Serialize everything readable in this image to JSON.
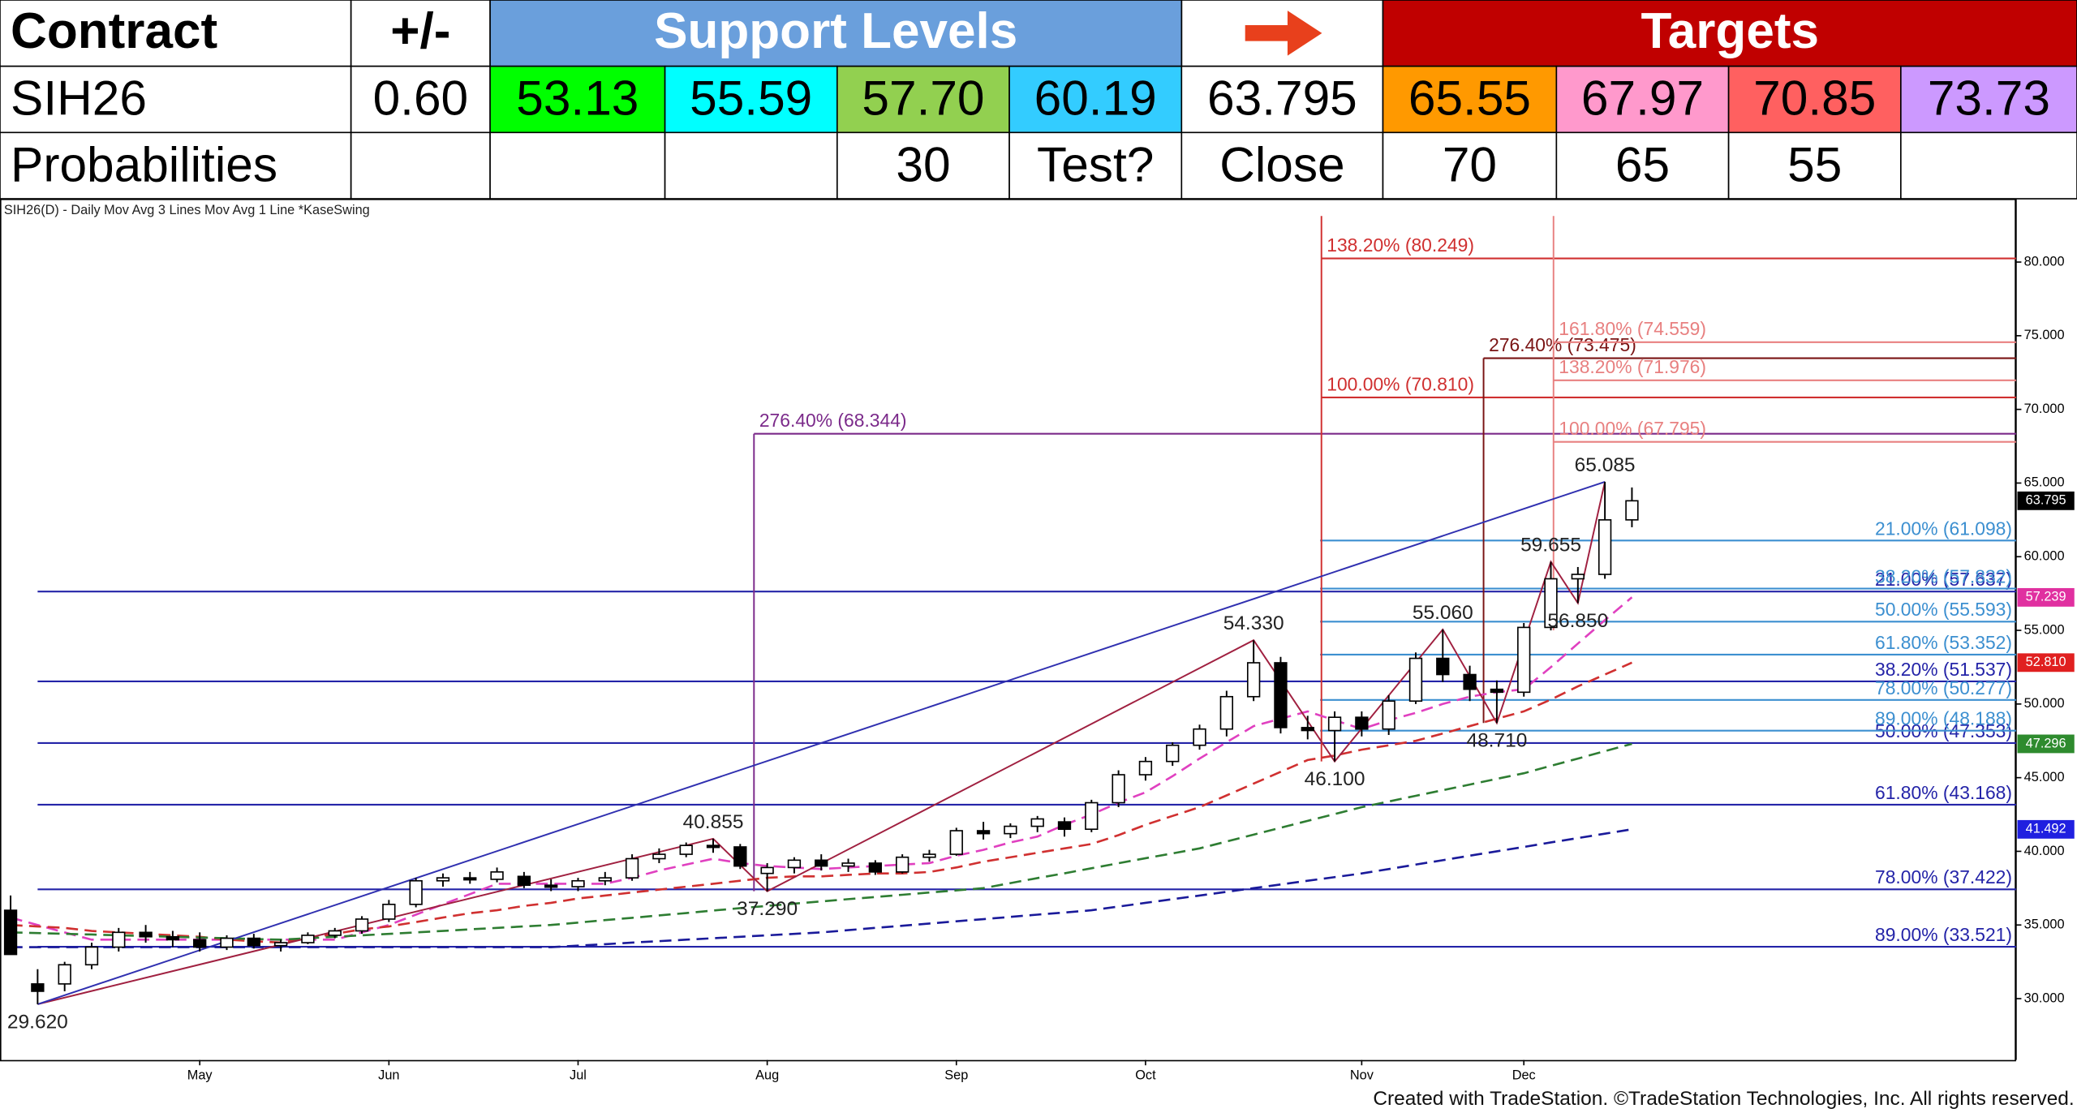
{
  "table": {
    "header": [
      "Contract",
      "+/-",
      "Support Levels",
      "Targets"
    ],
    "rows": [
      [
        "SIH26",
        "0.60",
        "53.13",
        "55.59",
        "57.70",
        "60.19",
        "63.795",
        "65.55",
        "67.97",
        "70.85",
        "73.73"
      ],
      [
        "Probabilities",
        null,
        null,
        null,
        "30",
        "Test?",
        "Close",
        "70",
        "65",
        "55",
        null
      ]
    ]
  },
  "footer": "Created with TradeStation. ©TradeStation Technologies, Inc. All rights reserved.",
  "chart_data": {
    "type": "candlestick",
    "title": "SIH26(D) - Daily  Mov Avg 3 Lines  Mov Avg 1 Line  *KaseSwing",
    "categories": [
      null,
      null,
      null,
      null,
      null,
      null,
      null,
      "May",
      null,
      null,
      null,
      null,
      null,
      null,
      "Jun",
      null,
      null,
      null,
      null,
      null,
      null,
      "Jul",
      null,
      null,
      null,
      null,
      null,
      null,
      "Aug",
      null,
      null,
      null,
      null,
      null,
      null,
      "Sep",
      null,
      null,
      null,
      null,
      null,
      null,
      "Oct",
      null,
      null,
      null,
      null,
      null,
      null,
      null,
      "Nov",
      null,
      null,
      null,
      null,
      null,
      "Dec",
      null,
      null,
      null,
      null
    ],
    "open": [
      36,
      31,
      31,
      32.3,
      33.5,
      34.5,
      34.2,
      34,
      33.5,
      34.1,
      33.6,
      33.8,
      34.3,
      34.6,
      35.4,
      36.4,
      38,
      38.2,
      38.1,
      38.3,
      37.7,
      37.6,
      38,
      38.2,
      39.5,
      39.8,
      40.4,
      40.3,
      38.5,
      38.9,
      39.4,
      39,
      39.2,
      38.6,
      39.6,
      39.8,
      41.4,
      41.2,
      41.7,
      42,
      41.5,
      43.3,
      45.2,
      46.1,
      47.2,
      48.3,
      50.5,
      52.8,
      48.4,
      48.2,
      49.1,
      48.3,
      50.2,
      53.1,
      52,
      51,
      50.8,
      55.2,
      58.5,
      58.8,
      62.5
    ],
    "high": [
      37,
      32,
      32.5,
      33.8,
      34.8,
      35,
      34.6,
      34.5,
      34.3,
      34.4,
      34,
      34.5,
      34.8,
      35.6,
      36.7,
      38.2,
      38.5,
      38.6,
      38.9,
      38.6,
      38.1,
      38.2,
      38.6,
      39.8,
      40.2,
      40.6,
      40.855,
      40.5,
      39.2,
      39.6,
      39.8,
      39.5,
      39.4,
      39.8,
      40.1,
      41.6,
      42,
      41.9,
      42.4,
      42.3,
      43.5,
      45.5,
      46.4,
      47.4,
      48.6,
      50.9,
      54.33,
      53.2,
      49.2,
      49.5,
      49.5,
      50.6,
      53.5,
      55.06,
      52.6,
      51.6,
      55.5,
      59.655,
      59.3,
      65.085,
      64.7
    ],
    "low": [
      33,
      29.62,
      30.5,
      32,
      33.2,
      33.8,
      33.5,
      33.2,
      33.3,
      33.4,
      33.2,
      33.7,
      34.1,
      34.4,
      35.2,
      36.2,
      37.6,
      37.8,
      37.9,
      37.5,
      37.3,
      37.3,
      37.7,
      38,
      39.2,
      39.6,
      39.9,
      38.8,
      37.29,
      38.5,
      38.7,
      38.6,
      38.4,
      38.5,
      39.3,
      39.7,
      40.8,
      40.9,
      41.3,
      41,
      41.3,
      43,
      44.8,
      45.8,
      46.9,
      47.8,
      50.2,
      48,
      47.6,
      46.1,
      47.8,
      47.9,
      50,
      51.5,
      50.2,
      48.71,
      50.5,
      55,
      56.85,
      58.5,
      62
    ],
    "close": [
      33,
      30.5,
      32.3,
      33.5,
      34.5,
      34.2,
      34,
      33.5,
      34.1,
      33.6,
      33.8,
      34.3,
      34.6,
      35.4,
      36.4,
      38,
      38.2,
      38.1,
      38.6,
      37.7,
      37.6,
      38,
      38.2,
      39.5,
      39.8,
      40.4,
      40.3,
      39,
      38.9,
      39.4,
      39,
      39.2,
      38.6,
      39.6,
      39.8,
      41.4,
      41.2,
      41.7,
      42.2,
      41.5,
      43.3,
      45.2,
      46.1,
      47.2,
      48.3,
      50.5,
      52.8,
      48.4,
      48.2,
      49.1,
      48.3,
      50.2,
      53.1,
      52,
      51,
      50.8,
      55.2,
      58.5,
      58.8,
      62.5,
      63.795
    ],
    "high_labels": [
      null,
      null,
      null,
      null,
      null,
      null,
      null,
      null,
      null,
      null,
      null,
      null,
      null,
      null,
      null,
      null,
      null,
      null,
      null,
      null,
      null,
      null,
      null,
      null,
      null,
      null,
      "40.855",
      null,
      null,
      null,
      null,
      null,
      null,
      null,
      null,
      null,
      null,
      null,
      null,
      null,
      null,
      null,
      null,
      null,
      null,
      null,
      "54.330",
      null,
      null,
      null,
      null,
      null,
      null,
      "55.060",
      null,
      null,
      null,
      "59.655",
      null,
      "65.085",
      null
    ],
    "low_labels": [
      null,
      "29.620",
      null,
      null,
      null,
      null,
      null,
      null,
      null,
      null,
      null,
      null,
      null,
      null,
      null,
      null,
      null,
      null,
      null,
      null,
      null,
      null,
      null,
      null,
      null,
      null,
      null,
      null,
      "37.290",
      null,
      null,
      null,
      null,
      null,
      null,
      null,
      null,
      null,
      null,
      null,
      null,
      null,
      null,
      null,
      null,
      null,
      null,
      null,
      null,
      "46.100",
      null,
      null,
      null,
      null,
      null,
      "48.710",
      null,
      null,
      "56.850",
      null,
      null
    ],
    "moving_averages": [
      {
        "color": "#e040c0",
        "values": [
          35.5,
          35,
          34.5,
          34,
          34,
          34,
          34,
          34,
          34,
          34,
          34,
          34,
          34,
          34.5,
          35,
          35.7,
          36.4,
          37.1,
          37.8,
          37.8,
          37.8,
          37.8,
          37.8,
          38.2,
          38.7,
          39.1,
          39.5,
          39.2,
          39,
          38.9,
          38.8,
          38.9,
          39,
          39.1,
          39.2,
          39.7,
          40.1,
          40.6,
          41,
          41.8,
          42.5,
          43.3,
          44,
          45.1,
          46.3,
          47.4,
          48.5,
          49,
          49.5,
          48.9,
          48.3,
          48.9,
          49.4,
          50,
          50.5,
          50.8,
          51,
          52.5,
          54.1,
          55.7,
          57.239
        ]
      },
      {
        "color": "#d03030",
        "values": [
          35,
          34.9,
          34.8,
          34.6,
          34.5,
          34.4,
          34.3,
          34.2,
          34,
          33.9,
          33.8,
          34.1,
          34.4,
          34.7,
          34.9,
          35.2,
          35.5,
          35.8,
          36,
          36.3,
          36.5,
          36.8,
          37,
          37.2,
          37.4,
          37.6,
          37.8,
          38,
          38.2,
          38.3,
          38.3,
          38.4,
          38.5,
          38.5,
          38.6,
          38.9,
          39.3,
          39.6,
          39.9,
          40.2,
          40.5,
          41.1,
          41.8,
          42.4,
          43,
          43.8,
          44.6,
          45.4,
          46.2,
          46.5,
          46.9,
          47.2,
          47.5,
          48,
          48.5,
          49,
          49.5,
          50.3,
          51.2,
          52,
          52.81
        ]
      },
      {
        "color": "#2e7d32",
        "values": [
          34.5,
          34.45,
          34.4,
          34.35,
          34.3,
          34.25,
          34.2,
          34.15,
          34.1,
          34.05,
          34,
          34.1,
          34.2,
          34.3,
          34.4,
          34.5,
          34.6,
          34.7,
          34.8,
          34.9,
          35,
          35.16,
          35.33,
          35.49,
          35.65,
          35.81,
          35.98,
          36.14,
          36.3,
          36.45,
          36.6,
          36.75,
          36.9,
          37.05,
          37.2,
          37.35,
          37.5,
          37.84,
          38.18,
          38.51,
          38.85,
          39.19,
          39.53,
          39.86,
          40.2,
          40.67,
          41.13,
          41.6,
          42.07,
          42.53,
          43,
          43.38,
          43.77,
          44.15,
          44.53,
          44.92,
          45.3,
          45.8,
          46.3,
          46.8,
          47.296
        ]
      },
      {
        "color": "#1a1a9a",
        "values": [
          33.5,
          33.5,
          33.5,
          33.5,
          33.5,
          33.5,
          33.5,
          33.5,
          33.5,
          33.5,
          33.5,
          33.5,
          33.5,
          33.5,
          33.5,
          33.5,
          33.5,
          33.5,
          33.5,
          33.5,
          33.5,
          33.6,
          33.7,
          33.8,
          33.9,
          34,
          34.1,
          34.2,
          34.3,
          34.4,
          34.5,
          34.65,
          34.8,
          34.95,
          35.1,
          35.25,
          35.4,
          35.55,
          35.7,
          35.85,
          36,
          36.25,
          36.5,
          36.75,
          37,
          37.25,
          37.5,
          37.75,
          38,
          38.25,
          38.5,
          38.8,
          39.1,
          39.4,
          39.7,
          40,
          40.3,
          40.6,
          40.9,
          41.2,
          41.492
        ]
      }
    ],
    "retracements": [
      {
        "color": "#2424a8",
        "levels": [
          {
            "label": "21.00% (57.637)",
            "value": 57.637
          },
          {
            "label": "38.20% (51.537)",
            "value": 51.537
          },
          {
            "label": "50.00% (47.353)",
            "value": 47.353
          },
          {
            "label": "61.80% (43.168)",
            "value": 43.168
          },
          {
            "label": "78.00% (37.422)",
            "value": 37.422
          },
          {
            "label": "89.00% (33.521)",
            "value": 33.521
          }
        ]
      },
      {
        "color": "#3c8fd0",
        "levels": [
          {
            "label": "21.00% (61.098)",
            "value": 61.098
          },
          {
            "label": "38.20% (57.832)",
            "value": 57.832
          },
          {
            "label": "50.00% (55.593)",
            "value": 55.593
          },
          {
            "label": "61.80% (53.352)",
            "value": 53.352
          },
          {
            "label": "78.00% (50.277)",
            "value": 50.277
          },
          {
            "label": "89.00% (48.188)",
            "value": 48.188
          }
        ]
      }
    ],
    "extensions": [
      {
        "color": "#7b2a8a",
        "levels": [
          {
            "label": "276.40% (68.344)",
            "value": 68.344
          }
        ]
      },
      {
        "color": "#d03030",
        "levels": [
          {
            "label": "138.20% (80.249)",
            "value": 80.249
          },
          {
            "label": "100.00% (70.810)",
            "value": 70.81
          }
        ]
      },
      {
        "color": "#7a1414",
        "levels": [
          {
            "label": "276.40% (73.475)",
            "value": 73.475
          }
        ]
      },
      {
        "color": "#e88080",
        "levels": [
          {
            "label": "161.80% (74.559)",
            "value": 74.559
          },
          {
            "label": "138.20% (71.976)",
            "value": 71.976
          },
          {
            "label": "100.00% (67.795)",
            "value": 67.795
          }
        ]
      }
    ],
    "price_markers": [
      {
        "value": 63.795,
        "label": "63.795",
        "color": "#000000"
      },
      {
        "value": 57.239,
        "label": "57.239",
        "color": "#e030a0"
      },
      {
        "value": 52.81,
        "label": "52.810",
        "color": "#e02020"
      },
      {
        "value": 47.296,
        "label": "47.296",
        "color": "#2e8b2e"
      },
      {
        "value": 41.492,
        "label": "41.492",
        "color": "#2020e0"
      }
    ],
    "ylim": [
      26.15,
      84.1
    ],
    "yticks": [
      {
        "value": 30,
        "label": "30.000"
      },
      {
        "value": 35,
        "label": "35.000"
      },
      {
        "value": 40,
        "label": "40.000"
      },
      {
        "value": 45,
        "label": "45.000"
      },
      {
        "value": 50,
        "label": "50.000"
      },
      {
        "value": 55,
        "label": "55.000"
      },
      {
        "value": 60,
        "label": "60.000"
      },
      {
        "value": 65,
        "label": "65.000"
      },
      {
        "value": 70,
        "label": "70.000"
      },
      {
        "value": 75,
        "label": "75.000"
      },
      {
        "value": 80,
        "label": "80.000"
      }
    ]
  }
}
